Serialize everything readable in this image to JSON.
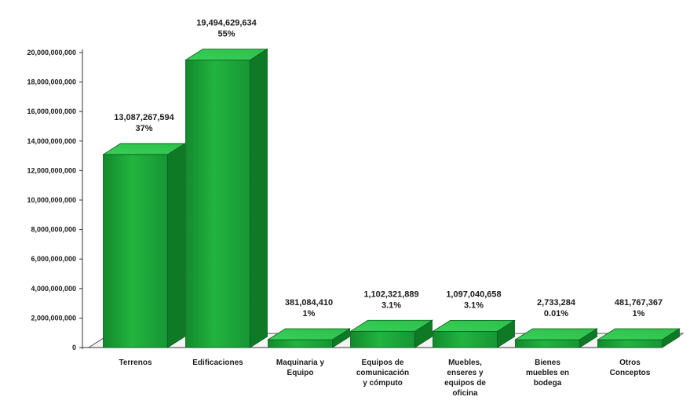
{
  "chart_data": {
    "type": "bar",
    "title": "",
    "xlabel": "",
    "ylabel": "",
    "ylim": [
      0,
      20000000000
    ],
    "yticks": [
      0,
      2000000000,
      4000000000,
      6000000000,
      8000000000,
      10000000000,
      12000000000,
      14000000000,
      16000000000,
      18000000000,
      20000000000
    ],
    "ytick_labels": [
      "0",
      "2,000,000,000",
      "4,000,000,000",
      "6,000,000,000",
      "8,000,000,000",
      "10,000,000,000",
      "12,000,000,000",
      "14,000,000,000",
      "16,000,000,000",
      "18,000,000,000",
      "20,000,000,000"
    ],
    "grid": false,
    "legend": "none",
    "style": "3d-bar",
    "bar_color": "#1fa83c",
    "categories": [
      [
        "Terrenos"
      ],
      [
        "Edificaciones"
      ],
      [
        "Maquinaria y",
        "Equipo"
      ],
      [
        "Equipos de",
        "comunicación",
        "y cómputo"
      ],
      [
        "Muebles,",
        "enseres y",
        "equipos de",
        "oficina"
      ],
      [
        "Bienes",
        "muebles en",
        "bodega"
      ],
      [
        "Otros",
        "Conceptos"
      ]
    ],
    "values": [
      13087267594,
      19494629634,
      381084410,
      1102321889,
      1097040658,
      2733284,
      481767367
    ],
    "value_labels": [
      "13,087,267,594",
      "19,494,629,634",
      "381,084,410",
      "1,102,321,889",
      "1,097,040,658",
      "2,733,284",
      "481,767,367"
    ],
    "percent_labels": [
      "37%",
      "55%",
      "1%",
      "3.1%",
      "3.1%",
      "0.01%",
      "1%"
    ]
  }
}
